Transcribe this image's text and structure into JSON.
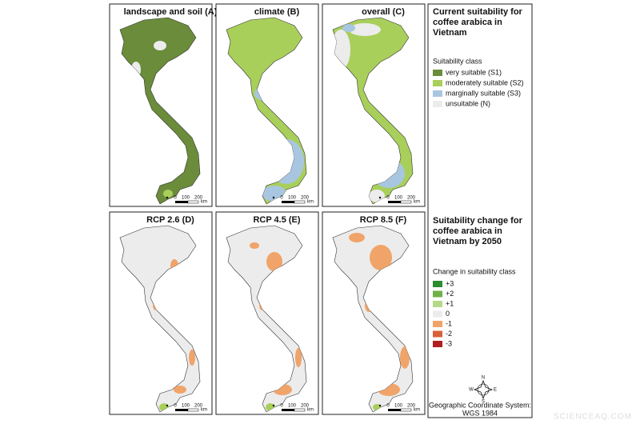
{
  "panels": [
    {
      "title": "landscape and soil (A)",
      "scale": [
        "0",
        "100",
        "200",
        "km"
      ]
    },
    {
      "title": "climate (B)",
      "scale": [
        "0",
        "100",
        "200",
        "km"
      ]
    },
    {
      "title": "overall (C)",
      "scale": [
        "0",
        "100",
        "200",
        "km"
      ]
    },
    {
      "title": "RCP 2.6 (D)",
      "scale": [
        "0",
        "100",
        "200",
        "km"
      ]
    },
    {
      "title": "RCP 4.5 (E)",
      "scale": [
        "0",
        "100",
        "200",
        "km"
      ]
    },
    {
      "title": "RCP 8.5 (F)",
      "scale": [
        "0",
        "100",
        "200",
        "km"
      ]
    }
  ],
  "legend": {
    "current": {
      "title_lines": [
        "Current suitability for",
        "coffee arabica in",
        "Vietnam"
      ],
      "subtitle": "Suitability class",
      "items": [
        {
          "label": "very suitable (S1)",
          "color": "#6b8c3a"
        },
        {
          "label": "moderately suitable (S2)",
          "color": "#a9cf5b"
        },
        {
          "label": "marginally suitable (S3)",
          "color": "#a8c6e0"
        },
        {
          "label": "unsuitable (N)",
          "color": "#ececec"
        }
      ]
    },
    "change": {
      "title_lines": [
        "Suitability change for",
        "coffee arabica in",
        "Vietnam by 2050"
      ],
      "subtitle": "Change in suitability class",
      "items": [
        {
          "label": "+3",
          "color": "#2e8b2e"
        },
        {
          "label": "+2",
          "color": "#6fb04a"
        },
        {
          "label": "+1",
          "color": "#b5d98a"
        },
        {
          "label": "0",
          "color": "#ececec"
        },
        {
          "label": "-1",
          "color": "#f0a46a"
        },
        {
          "label": "-2",
          "color": "#d8603a"
        },
        {
          "label": "-3",
          "color": "#b01e1e"
        }
      ]
    }
  },
  "compass": {
    "n": "N",
    "e": "E",
    "s": "S",
    "w": "W"
  },
  "crs_lines": [
    "Geographic Coordinate System:",
    "WGS 1984"
  ],
  "watermark": "SCIENCEAQ.COM"
}
